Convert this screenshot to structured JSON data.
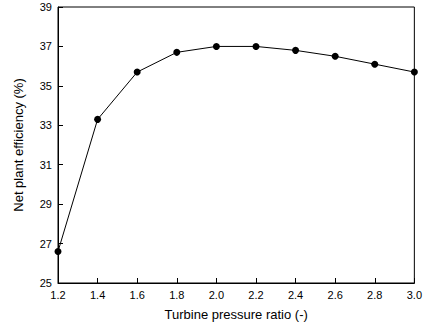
{
  "chart_data": {
    "type": "line",
    "x_label": "Turbine pressure ratio (-)",
    "y_label": "Net plant efficiency (%)",
    "x": [
      1.2,
      1.4,
      1.6,
      1.8,
      2.0,
      2.2,
      2.4,
      2.6,
      2.8,
      3.0
    ],
    "values": [
      26.6,
      33.3,
      35.7,
      36.7,
      37.0,
      37.0,
      36.8,
      36.5,
      36.1,
      35.7
    ],
    "color": "#000000",
    "marker": "circle",
    "line_style": "solid",
    "xlim": [
      1.2,
      3.0
    ],
    "xticks": [
      1.2,
      1.4,
      1.6,
      1.8,
      {
        "value": 2,
        "label": "2.0"
      },
      2.2,
      2.4,
      2.6,
      2.8,
      {
        "value": 3,
        "label": "3.0"
      }
    ],
    "ylim": [
      25,
      39
    ],
    "yticks": [
      25,
      27,
      29,
      31,
      33,
      35,
      37,
      39
    ],
    "grid": false
  }
}
